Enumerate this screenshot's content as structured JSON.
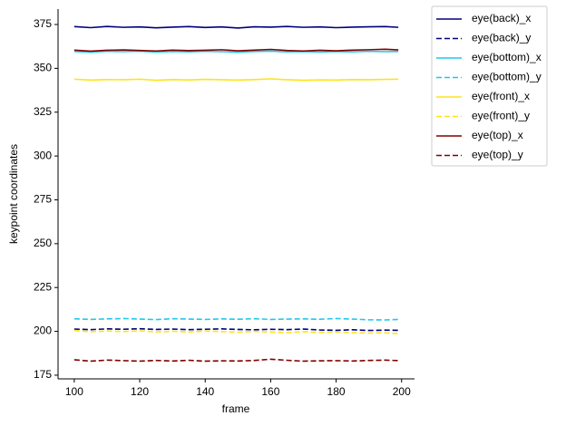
{
  "chart_data": {
    "type": "line",
    "x_label": "frame",
    "y_label": "keypoint coordinates",
    "x": [
      100,
      105,
      110,
      115,
      120,
      125,
      130,
      135,
      140,
      145,
      150,
      155,
      160,
      165,
      170,
      175,
      180,
      185,
      190,
      195,
      199
    ],
    "series": [
      {
        "name": "eye(back)_x",
        "color": "#00007f",
        "linestyle": "solid",
        "values": [
          373.8,
          373.2,
          373.9,
          373.4,
          373.6,
          373.1,
          373.5,
          373.8,
          373.3,
          373.6,
          373.0,
          373.7,
          373.5,
          373.9,
          373.4,
          373.6,
          373.2,
          373.5,
          373.7,
          373.8,
          373.4
        ]
      },
      {
        "name": "eye(back)_y",
        "color": "#00007f",
        "linestyle": "dashed",
        "values": [
          201.3,
          201.0,
          201.4,
          201.2,
          201.5,
          201.1,
          201.3,
          201.0,
          201.2,
          201.4,
          201.1,
          200.9,
          201.2,
          201.0,
          201.3,
          200.8,
          200.6,
          200.9,
          200.5,
          200.7,
          200.6
        ]
      },
      {
        "name": "eye(bottom)_x",
        "color": "#1ec8ee",
        "linestyle": "solid",
        "values": [
          359.6,
          359.2,
          359.7,
          359.5,
          359.8,
          359.3,
          359.6,
          359.4,
          359.7,
          359.5,
          359.2,
          359.6,
          359.8,
          359.4,
          359.5,
          359.3,
          359.6,
          359.4,
          359.7,
          359.5,
          359.6
        ]
      },
      {
        "name": "eye(bottom)_y",
        "color": "#1ec8ee",
        "linestyle": "dashed",
        "values": [
          207.2,
          206.8,
          207.1,
          207.3,
          207.0,
          206.7,
          207.2,
          207.0,
          206.8,
          207.1,
          206.9,
          207.2,
          206.8,
          207.0,
          207.1,
          206.9,
          207.3,
          207.0,
          206.6,
          206.5,
          206.8
        ]
      },
      {
        "name": "eye(front)_x",
        "color": "#ffe31a",
        "linestyle": "solid",
        "values": [
          343.8,
          343.3,
          343.6,
          343.5,
          343.8,
          343.2,
          343.6,
          343.4,
          343.7,
          343.5,
          343.3,
          343.6,
          344.0,
          343.5,
          343.2,
          343.4,
          343.3,
          343.6,
          343.5,
          343.7,
          343.8
        ]
      },
      {
        "name": "eye(front)_y",
        "color": "#ffe31a",
        "linestyle": "dashed",
        "values": [
          200.5,
          199.8,
          200.2,
          199.9,
          200.3,
          199.7,
          200.1,
          199.6,
          200.2,
          199.9,
          199.5,
          200.0,
          199.6,
          199.2,
          199.8,
          199.4,
          199.7,
          199.3,
          199.0,
          199.2,
          198.7
        ]
      },
      {
        "name": "eye(top)_x",
        "color": "#800000",
        "linestyle": "solid",
        "values": [
          360.4,
          359.8,
          360.3,
          360.5,
          360.2,
          359.9,
          360.4,
          360.1,
          360.3,
          360.6,
          360.0,
          360.4,
          360.8,
          360.2,
          359.9,
          360.3,
          360.0,
          360.4,
          360.6,
          360.9,
          360.5
        ]
      },
      {
        "name": "eye(top)_y",
        "color": "#800000",
        "linestyle": "dashed",
        "values": [
          183.8,
          183.0,
          183.6,
          183.3,
          183.0,
          183.4,
          183.1,
          183.5,
          183.0,
          183.2,
          183.1,
          183.4,
          184.1,
          183.5,
          183.0,
          183.2,
          183.3,
          183.1,
          183.4,
          183.6,
          183.3
        ]
      }
    ],
    "xlim": [
      95.05,
      203.95
    ],
    "xticks": [
      100,
      120,
      140,
      160,
      180,
      200
    ],
    "ylim": [
      172.9,
      383.8
    ],
    "yticks": [
      175,
      200,
      225,
      250,
      275,
      300,
      325,
      350,
      375
    ],
    "grid": false,
    "legend": "outside-right"
  }
}
